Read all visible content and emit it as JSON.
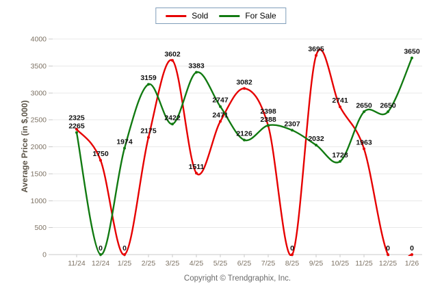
{
  "legend": {
    "items": [
      {
        "label": "Sold",
        "color": "#e60000"
      },
      {
        "label": "For Sale",
        "color": "#117a11"
      }
    ]
  },
  "chart_data": {
    "type": "line",
    "x": [
      "11/24",
      "12/24",
      "1/25",
      "2/25",
      "3/25",
      "4/25",
      "5/25",
      "6/25",
      "7/25",
      "8/25",
      "9/25",
      "10/25",
      "11/25",
      "12/25",
      "1/26"
    ],
    "series": [
      {
        "name": "Sold",
        "color": "#e60000",
        "values": [
          2325,
          1750,
          0,
          2175,
          3602,
          1511,
          2471,
          3082,
          2388,
          0,
          3695,
          2741,
          1963,
          0,
          0
        ]
      },
      {
        "name": "For Sale",
        "color": "#117a11",
        "values": [
          2265,
          0,
          1974,
          3159,
          2422,
          3383,
          2747,
          2126,
          2398,
          2307,
          2032,
          1728,
          2650,
          2650,
          3650
        ]
      }
    ],
    "title": "",
    "xlabel": "",
    "ylabel": "Average Price (in $,000)",
    "ylim": [
      0,
      4000
    ],
    "yticks": [
      0,
      500,
      1000,
      1500,
      2000,
      2500,
      3000,
      3500,
      4000
    ],
    "grid": true,
    "legend_position": "top-center",
    "point_labels": true,
    "line_style": "smooth-spline",
    "colors": {
      "gridline": "#e8e8e8",
      "axis": "#c9c9c9",
      "tick_text": "#7d7264",
      "point_label_text": "#111111"
    }
  },
  "footer": {
    "copyright": "Copyright © Trendgraphix, Inc."
  }
}
